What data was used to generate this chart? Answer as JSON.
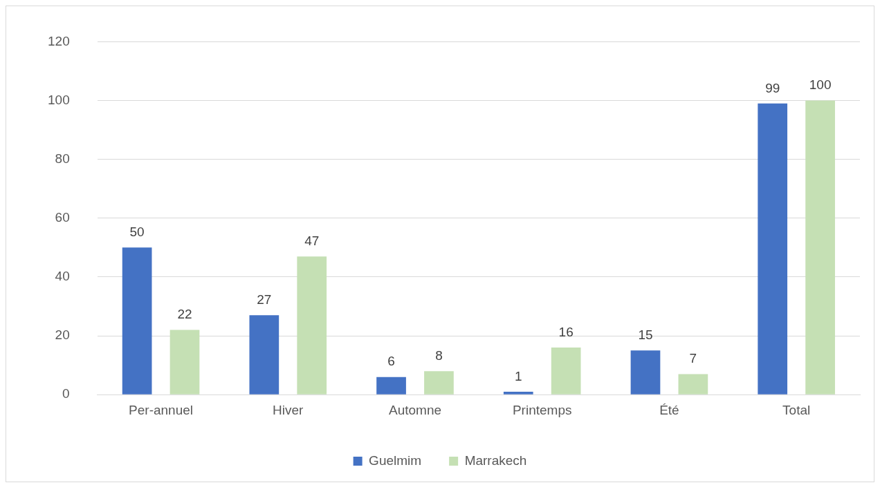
{
  "chart_data": {
    "type": "bar",
    "categories": [
      "Per-annuel",
      "Hiver",
      "Automne",
      "Printemps",
      "Été",
      "Total"
    ],
    "series": [
      {
        "name": "Guelmim",
        "color": "#4472c4",
        "values": [
          50,
          27,
          6,
          1,
          15,
          99
        ]
      },
      {
        "name": "Marrakech",
        "color": "#c5e0b4",
        "values": [
          22,
          47,
          8,
          16,
          7,
          100
        ]
      }
    ],
    "ylim": [
      0,
      120
    ],
    "yticks": [
      0,
      20,
      40,
      60,
      80,
      100,
      120
    ],
    "grid": "y",
    "legend": "bottom",
    "data_labels": true
  }
}
